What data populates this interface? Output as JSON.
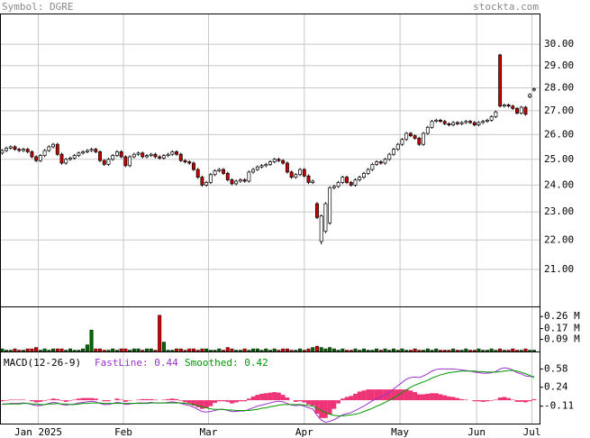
{
  "chart_data": [
    {
      "type": "candlestick",
      "title": "Symbol: DGRE",
      "source": "stockta.com",
      "xlim": [
        -0.5,
        126.5
      ],
      "log_scale": true,
      "grid": true,
      "ylim": [
        19.8,
        31.5
      ],
      "yticks": [
        {
          "value": 21,
          "label": "21.00"
        },
        {
          "value": 22,
          "label": "22.00"
        },
        {
          "value": 23,
          "label": "23.00"
        },
        {
          "value": 24,
          "label": "24.00"
        },
        {
          "value": 25,
          "label": "25.00"
        },
        {
          "value": 26,
          "label": "26.00"
        },
        {
          "value": 27,
          "label": "27.00"
        },
        {
          "value": 28,
          "label": "28.00"
        },
        {
          "value": 29,
          "label": "29.00"
        },
        {
          "value": 30,
          "label": "30.00"
        }
      ],
      "up_color": "#ffffff",
      "down_color": "#cc0000",
      "open": [
        25.25,
        25.35,
        25.45,
        25.5,
        25.4,
        25.35,
        25.4,
        25.3,
        25.1,
        24.95,
        25.15,
        25.35,
        25.5,
        25.6,
        25.2,
        24.85,
        25.0,
        25.05,
        25.15,
        25.25,
        25.3,
        25.35,
        25.4,
        25.3,
        24.95,
        24.8,
        25.0,
        25.15,
        25.3,
        25.1,
        24.75,
        25.1,
        25.2,
        25.25,
        25.1,
        25.15,
        25.2,
        25.1,
        25.05,
        25.15,
        25.2,
        25.3,
        25.2,
        24.95,
        24.9,
        24.85,
        24.6,
        24.3,
        24.0,
        24.1,
        24.4,
        24.55,
        24.6,
        24.45,
        24.2,
        24.05,
        24.15,
        24.2,
        24.15,
        24.5,
        24.6,
        24.7,
        24.75,
        24.8,
        24.9,
        25.0,
        24.95,
        24.85,
        24.5,
        24.3,
        24.4,
        24.6,
        24.35,
        24.1,
        23.3,
        21.95,
        22.3,
        22.6,
        23.9,
        23.95,
        24.1,
        24.3,
        24.1,
        24.0,
        24.2,
        24.3,
        24.45,
        24.6,
        24.8,
        24.9,
        24.85,
        25.0,
        25.2,
        25.4,
        25.6,
        25.8,
        26.05,
        25.95,
        25.85,
        25.6,
        26.05,
        26.3,
        26.55,
        26.6,
        26.55,
        26.45,
        26.4,
        26.5,
        26.45,
        26.5,
        26.55,
        26.5,
        26.4,
        26.5,
        26.55,
        26.6,
        26.75,
        29.5,
        27.2,
        27.25,
        27.2,
        27.1,
        26.9,
        27.15,
        27.6,
        27.9
      ],
      "high": [
        25.41,
        25.51,
        25.56,
        25.56,
        25.46,
        25.46,
        25.46,
        25.36,
        25.16,
        25.21,
        25.41,
        25.56,
        25.66,
        25.66,
        25.26,
        25.06,
        25.11,
        25.21,
        25.31,
        25.36,
        25.41,
        25.46,
        25.46,
        25.36,
        25.01,
        25.06,
        25.21,
        25.36,
        25.36,
        25.16,
        25.16,
        25.26,
        25.31,
        25.31,
        25.21,
        25.26,
        25.26,
        25.16,
        25.21,
        25.26,
        25.36,
        25.36,
        25.26,
        25.01,
        24.96,
        24.91,
        24.66,
        24.36,
        24.16,
        24.46,
        24.61,
        24.66,
        24.66,
        24.51,
        24.26,
        24.21,
        24.26,
        24.26,
        24.56,
        24.66,
        24.76,
        24.81,
        24.86,
        24.96,
        25.06,
        25.06,
        25.01,
        24.91,
        24.56,
        24.46,
        24.66,
        24.66,
        24.41,
        24.21,
        23.36,
        22.91,
        23.36,
        23.96,
        24.01,
        24.16,
        24.36,
        24.36,
        24.16,
        24.26,
        24.36,
        24.51,
        24.66,
        24.86,
        24.96,
        24.96,
        25.06,
        25.26,
        25.46,
        25.66,
        25.86,
        26.11,
        26.11,
        26.01,
        25.91,
        26.11,
        26.36,
        26.61,
        26.66,
        26.66,
        26.61,
        26.51,
        26.56,
        26.56,
        26.56,
        26.61,
        26.61,
        26.56,
        26.56,
        26.61,
        26.66,
        26.81,
        27.01,
        29.55,
        27.31,
        27.31,
        27.26,
        27.16,
        27.21,
        27.21,
        27.76,
        28.01
      ],
      "low": [
        25.19,
        25.29,
        25.39,
        25.34,
        25.29,
        25.29,
        25.24,
        25.04,
        24.89,
        24.89,
        25.09,
        25.29,
        25.44,
        25.14,
        24.79,
        24.79,
        24.94,
        24.99,
        25.09,
        25.19,
        25.24,
        25.29,
        25.24,
        24.89,
        24.74,
        24.74,
        24.94,
        25.09,
        25.04,
        24.69,
        24.69,
        25.04,
        25.14,
        25.04,
        25.04,
        25.09,
        25.04,
        24.99,
        24.99,
        25.09,
        25.14,
        25.14,
        24.89,
        24.84,
        24.79,
        24.54,
        24.24,
        23.94,
        23.94,
        24.04,
        24.34,
        24.49,
        24.39,
        24.14,
        23.99,
        23.99,
        24.09,
        24.09,
        24.09,
        24.44,
        24.54,
        24.64,
        24.69,
        24.74,
        24.84,
        24.89,
        24.79,
        24.44,
        24.24,
        24.24,
        24.34,
        24.29,
        24.04,
        24.04,
        22.74,
        21.85,
        22.24,
        22.54,
        23.84,
        23.89,
        24.04,
        24.04,
        23.94,
        23.94,
        24.14,
        24.24,
        24.39,
        24.54,
        24.74,
        24.79,
        24.79,
        24.94,
        25.14,
        25.34,
        25.54,
        25.74,
        25.89,
        25.79,
        25.54,
        25.54,
        25.99,
        26.24,
        26.49,
        26.49,
        26.39,
        26.34,
        26.34,
        26.39,
        26.39,
        26.44,
        26.44,
        26.34,
        26.34,
        26.44,
        26.49,
        26.54,
        26.69,
        27.14,
        27.14,
        27.14,
        27.04,
        26.84,
        26.84,
        26.79,
        27.54,
        27.84
      ],
      "close": [
        25.35,
        25.45,
        25.5,
        25.4,
        25.35,
        25.4,
        25.3,
        25.1,
        24.95,
        25.15,
        25.35,
        25.5,
        25.6,
        25.2,
        24.85,
        25.0,
        25.05,
        25.15,
        25.25,
        25.3,
        25.35,
        25.4,
        25.3,
        24.95,
        24.8,
        25.0,
        25.15,
        25.3,
        25.1,
        24.75,
        25.1,
        25.2,
        25.25,
        25.1,
        25.15,
        25.2,
        25.1,
        25.05,
        25.15,
        25.2,
        25.3,
        25.2,
        24.95,
        24.9,
        24.85,
        24.6,
        24.3,
        24.0,
        24.1,
        24.4,
        24.55,
        24.6,
        24.45,
        24.2,
        24.05,
        24.15,
        24.2,
        24.15,
        24.5,
        24.6,
        24.7,
        24.75,
        24.8,
        24.9,
        25.0,
        24.95,
        24.85,
        24.5,
        24.3,
        24.4,
        24.6,
        24.35,
        24.1,
        24.15,
        22.8,
        22.85,
        23.3,
        23.9,
        23.95,
        24.1,
        24.3,
        24.1,
        24.0,
        24.2,
        24.3,
        24.45,
        24.6,
        24.8,
        24.9,
        24.85,
        25.0,
        25.2,
        25.4,
        25.6,
        25.8,
        26.05,
        25.95,
        25.85,
        25.6,
        26.05,
        26.3,
        26.55,
        26.6,
        26.55,
        26.45,
        26.4,
        26.5,
        26.45,
        26.5,
        26.55,
        26.5,
        26.4,
        26.5,
        26.55,
        26.6,
        26.75,
        26.95,
        27.2,
        27.25,
        27.2,
        27.1,
        26.9,
        27.15,
        26.85,
        27.7,
        27.95
      ]
    },
    {
      "type": "bar",
      "ylim": [
        0,
        0.335
      ],
      "yticks": [
        {
          "value": 0.09,
          "label": "0.09 M"
        },
        {
          "value": 0.17,
          "label": "0.17 M"
        },
        {
          "value": 0.26,
          "label": "0.26 M"
        }
      ],
      "up_color": "#006600",
      "down_color": "#cc0000",
      "values": [
        0.02,
        0.01,
        0.01,
        0.02,
        0.01,
        0.01,
        0.02,
        0.02,
        0.03,
        0.01,
        0.02,
        0.01,
        0.02,
        0.02,
        0.02,
        0.01,
        0.02,
        0.01,
        0.01,
        0.02,
        0.05,
        0.16,
        0.02,
        0.02,
        0.01,
        0.01,
        0.02,
        0.01,
        0.02,
        0.02,
        0.01,
        0.02,
        0.02,
        0.01,
        0.02,
        0.02,
        0.01,
        0.27,
        0.07,
        0.01,
        0.01,
        0.02,
        0.02,
        0.01,
        0.02,
        0.02,
        0.01,
        0.02,
        0.02,
        0.01,
        0.01,
        0.02,
        0.01,
        0.03,
        0.02,
        0.01,
        0.01,
        0.02,
        0.01,
        0.02,
        0.02,
        0.01,
        0.02,
        0.01,
        0.02,
        0.01,
        0.02,
        0.02,
        0.01,
        0.01,
        0.02,
        0.01,
        0.02,
        0.03,
        0.04,
        0.03,
        0.02,
        0.03,
        0.02,
        0.01,
        0.02,
        0.01,
        0.01,
        0.02,
        0.01,
        0.02,
        0.01,
        0.01,
        0.02,
        0.01,
        0.02,
        0.01,
        0.02,
        0.01,
        0.02,
        0.01,
        0.01,
        0.02,
        0.01,
        0.01,
        0.02,
        0.01,
        0.02,
        0.01,
        0.01,
        0.01,
        0.02,
        0.01,
        0.01,
        0.02,
        0.01,
        0.01,
        0.02,
        0.01,
        0.01,
        0.02,
        0.01,
        0.02,
        0.01,
        0.01,
        0.02,
        0.01,
        0.01,
        0.02,
        0.01,
        0.01
      ]
    },
    {
      "type": "line",
      "title": "MACD(12-26-9)",
      "ylim": [
        -0.433,
        0.903
      ],
      "yticks": [
        -0.11,
        0.24,
        0.58
      ],
      "xticks": [
        {
          "value": 8.5,
          "label": "Jan 2025"
        },
        {
          "value": 28.5,
          "label": "Feb"
        },
        {
          "value": 48.5,
          "label": "Mar"
        },
        {
          "value": 71,
          "label": "Apr"
        },
        {
          "value": 93.5,
          "label": "May"
        },
        {
          "value": 111.5,
          "label": "Jun"
        },
        {
          "value": 124.5,
          "label": "Jul"
        }
      ],
      "series": [
        {
          "name": "FastLine: 0.44",
          "color": "#9933cc",
          "values": [
            -0.08,
            -0.07,
            -0.06,
            -0.06,
            -0.06,
            -0.05,
            -0.06,
            -0.08,
            -0.1,
            -0.1,
            -0.08,
            -0.06,
            -0.04,
            -0.05,
            -0.08,
            -0.09,
            -0.08,
            -0.07,
            -0.05,
            -0.04,
            -0.03,
            -0.02,
            -0.03,
            -0.06,
            -0.08,
            -0.08,
            -0.06,
            -0.04,
            -0.05,
            -0.08,
            -0.07,
            -0.06,
            -0.05,
            -0.05,
            -0.05,
            -0.04,
            -0.05,
            -0.05,
            -0.05,
            -0.04,
            -0.03,
            -0.04,
            -0.06,
            -0.08,
            -0.1,
            -0.13,
            -0.17,
            -0.21,
            -0.22,
            -0.21,
            -0.19,
            -0.17,
            -0.17,
            -0.19,
            -0.21,
            -0.21,
            -0.2,
            -0.2,
            -0.17,
            -0.14,
            -0.11,
            -0.09,
            -0.07,
            -0.05,
            -0.03,
            -0.02,
            -0.03,
            -0.06,
            -0.09,
            -0.1,
            -0.09,
            -0.11,
            -0.14,
            -0.16,
            -0.28,
            -0.37,
            -0.41,
            -0.39,
            -0.36,
            -0.32,
            -0.27,
            -0.25,
            -0.23,
            -0.19,
            -0.15,
            -0.11,
            -0.06,
            -0.01,
            0.03,
            0.06,
            0.1,
            0.15,
            0.21,
            0.27,
            0.33,
            0.39,
            0.42,
            0.43,
            0.42,
            0.45,
            0.49,
            0.54,
            0.57,
            0.58,
            0.58,
            0.58,
            0.58,
            0.57,
            0.56,
            0.55,
            0.54,
            0.52,
            0.51,
            0.5,
            0.5,
            0.51,
            0.53,
            0.58,
            0.6,
            0.59,
            0.56,
            0.51,
            0.49,
            0.45,
            0.44,
            0.44
          ]
        },
        {
          "name": "Smoothed: 0.42",
          "color": "#009900",
          "values": [
            -0.07,
            -0.07,
            -0.07,
            -0.07,
            -0.07,
            -0.06,
            -0.06,
            -0.07,
            -0.07,
            -0.08,
            -0.08,
            -0.07,
            -0.07,
            -0.06,
            -0.07,
            -0.07,
            -0.08,
            -0.08,
            -0.07,
            -0.06,
            -0.06,
            -0.05,
            -0.05,
            -0.05,
            -0.06,
            -0.06,
            -0.06,
            -0.06,
            -0.06,
            -0.06,
            -0.06,
            -0.06,
            -0.06,
            -0.06,
            -0.06,
            -0.05,
            -0.05,
            -0.05,
            -0.05,
            -0.05,
            -0.05,
            -0.05,
            -0.05,
            -0.06,
            -0.07,
            -0.08,
            -0.1,
            -0.12,
            -0.14,
            -0.16,
            -0.17,
            -0.17,
            -0.17,
            -0.18,
            -0.18,
            -0.19,
            -0.19,
            -0.19,
            -0.19,
            -0.18,
            -0.17,
            -0.15,
            -0.14,
            -0.12,
            -0.11,
            -0.09,
            -0.08,
            -0.08,
            -0.08,
            -0.08,
            -0.08,
            -0.09,
            -0.1,
            -0.11,
            -0.15,
            -0.19,
            -0.23,
            -0.26,
            -0.28,
            -0.29,
            -0.29,
            -0.28,
            -0.27,
            -0.26,
            -0.24,
            -0.21,
            -0.18,
            -0.15,
            -0.11,
            -0.08,
            -0.04,
            0.0,
            0.04,
            0.09,
            0.14,
            0.19,
            0.24,
            0.28,
            0.31,
            0.34,
            0.37,
            0.41,
            0.44,
            0.47,
            0.49,
            0.51,
            0.52,
            0.53,
            0.54,
            0.54,
            0.54,
            0.54,
            0.53,
            0.53,
            0.52,
            0.52,
            0.52,
            0.53,
            0.54,
            0.55,
            0.55,
            0.54,
            0.52,
            0.49,
            0.46,
            0.42
          ]
        }
      ],
      "histogram": {
        "color": "#ee3377",
        "values": [
          -0.02,
          -0.01,
          0.01,
          0.01,
          0.01,
          0.01,
          0,
          -0.02,
          -0.04,
          -0.03,
          -0.01,
          0.01,
          0.03,
          0.02,
          -0.01,
          -0.03,
          -0.01,
          0.01,
          0.03,
          0.04,
          0.04,
          0.04,
          0.03,
          0.0,
          -0.02,
          -0.02,
          0.0,
          0.03,
          0.01,
          -0.03,
          -0.01,
          0.0,
          0.01,
          0.02,
          0.02,
          0.02,
          0.01,
          0.0,
          0.01,
          0.02,
          0.03,
          0.02,
          -0.01,
          -0.04,
          -0.06,
          -0.1,
          -0.13,
          -0.16,
          -0.15,
          -0.11,
          -0.05,
          -0.02,
          -0.02,
          -0.03,
          -0.06,
          -0.04,
          -0.02,
          -0.02,
          0.03,
          0.07,
          0.1,
          0.12,
          0.13,
          0.14,
          0.15,
          0.14,
          0.1,
          0.05,
          0.0,
          -0.03,
          -0.02,
          -0.04,
          -0.08,
          -0.1,
          -0.25,
          -0.33,
          -0.33,
          -0.26,
          -0.16,
          -0.06,
          0.03,
          0.06,
          0.08,
          0.12,
          0.16,
          0.18,
          0.2,
          0.2,
          0.2,
          0.2,
          0.2,
          0.2,
          0.2,
          0.2,
          0.2,
          0.2,
          0.18,
          0.15,
          0.11,
          0.11,
          0.12,
          0.13,
          0.13,
          0.11,
          0.09,
          0.07,
          0.06,
          0.04,
          0.02,
          0.01,
          0.0,
          -0.02,
          -0.02,
          -0.03,
          -0.02,
          -0.01,
          0.01,
          0.05,
          0.06,
          0.04,
          0.01,
          -0.03,
          -0.03,
          -0.04,
          -0.02,
          0.02
        ]
      }
    }
  ]
}
